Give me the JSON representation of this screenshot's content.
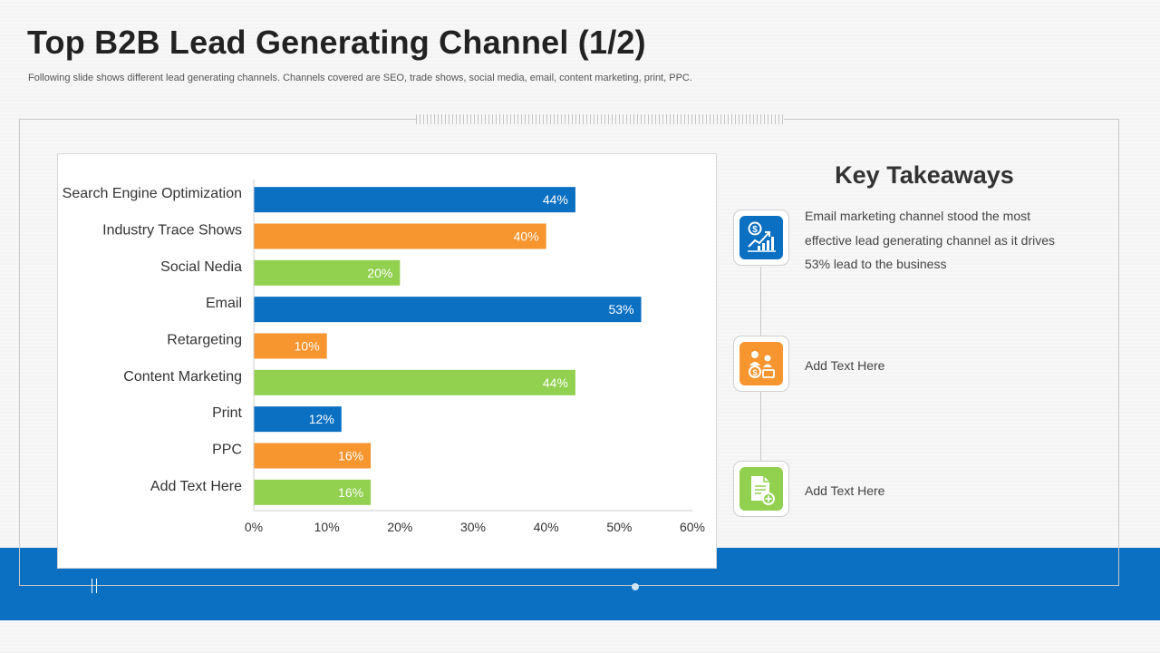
{
  "slide": {
    "title": "Top B2B Lead Generating Channel (1/2)",
    "subtitle": "Following slide shows different lead generating channels. Channels covered are SEO, trade shows, social media, email, content marketing, print, PPC."
  },
  "colors": {
    "blue": "#0b6fc2",
    "orange": "#f7952f",
    "green": "#92d050",
    "band": "#0b6fc2"
  },
  "chart_data": {
    "type": "bar",
    "orientation": "horizontal",
    "categories": [
      "Search Engine Optimization",
      "Industry Trace Shows",
      "Social Nedia",
      "Email",
      "Retargeting",
      "Content Marketing",
      "Print",
      "PPC",
      "Add Text Here"
    ],
    "values": [
      44,
      40,
      20,
      53,
      10,
      44,
      12,
      16,
      16
    ],
    "labels": [
      "44%",
      "40%",
      "20%",
      "53%",
      "10%",
      "44%",
      "12%",
      "16%",
      "16%"
    ],
    "bar_colors": [
      "blue",
      "orange",
      "green",
      "blue",
      "orange",
      "green",
      "blue",
      "orange",
      "green"
    ],
    "xlim": [
      0,
      60
    ],
    "xticks": [
      0,
      10,
      20,
      30,
      40,
      50,
      60
    ],
    "xtick_labels": [
      "0%",
      "10%",
      "20%",
      "30%",
      "40%",
      "50%",
      "60%"
    ],
    "title": "",
    "xlabel": "",
    "ylabel": "",
    "grid": false
  },
  "takeaways": {
    "heading": "Key Takeaways",
    "items": [
      {
        "icon": "growth-chart-dollar-icon",
        "text": "Email marketing channel stood the most effective lead generating channel as it drives 53% lead to the business"
      },
      {
        "icon": "team-money-icon",
        "text": "Add Text Here"
      },
      {
        "icon": "document-add-icon",
        "text": "Add Text Here"
      }
    ]
  }
}
